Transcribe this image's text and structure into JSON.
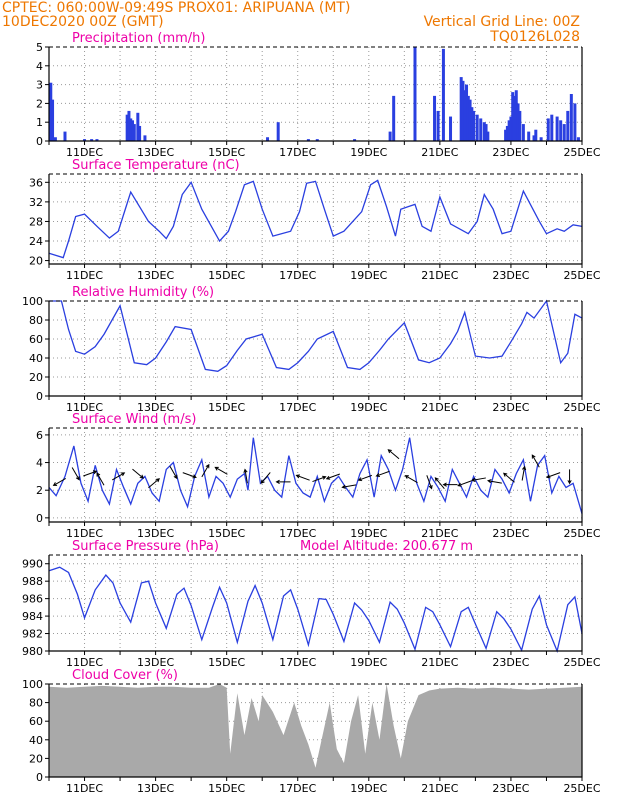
{
  "header": {
    "line1": "CPTEC:    060:00W-09:49S    PROX01: ARIPUANA (MT)",
    "line2_left": "10DEC2020 00Z (GMT)",
    "line2_right": "Vertical Grid Line: 00Z",
    "line3_right": "TQ0126L028"
  },
  "colors": {
    "header": "#ee7700",
    "title": "#ee00a8",
    "series": "#2a3fe0",
    "cloud": "#a9a9a9"
  },
  "chart_data": [
    {
      "type": "bar",
      "title": "Precipitation (mm/h)",
      "xticks": [
        "11DEC",
        "13DEC",
        "15DEC",
        "17DEC",
        "19DEC",
        "21DEC",
        "23DEC",
        "25DEC"
      ],
      "xrange_days": [
        10,
        25
      ],
      "ylim": [
        0,
        5
      ],
      "yticks": [
        0,
        1,
        2,
        3,
        4,
        5
      ],
      "grid": true,
      "x": [
        10.05,
        10.1,
        10.18,
        10.45,
        11.0,
        11.2,
        11.35,
        12.2,
        12.25,
        12.3,
        12.35,
        12.4,
        12.5,
        12.55,
        12.7,
        16.15,
        16.45,
        17.3,
        17.55,
        18.6,
        19.6,
        19.7,
        20.3,
        20.85,
        20.95,
        21.1,
        21.3,
        21.6,
        21.65,
        21.7,
        21.75,
        21.8,
        21.85,
        21.9,
        21.95,
        22.05,
        22.15,
        22.25,
        22.3,
        22.35,
        22.85,
        22.9,
        22.95,
        23.0,
        23.05,
        23.1,
        23.15,
        23.2,
        23.25,
        23.35,
        23.5,
        23.65,
        23.7,
        23.85,
        24.05,
        24.15,
        24.3,
        24.4,
        24.5,
        24.6,
        24.7,
        24.8,
        24.9
      ],
      "y": [
        3.1,
        2.2,
        0.2,
        0.5,
        0.1,
        0.1,
        0.1,
        1.4,
        1.6,
        1.2,
        1.1,
        0.9,
        1.5,
        0.8,
        0.3,
        0.2,
        1.0,
        0.1,
        0.1,
        0.1,
        0.5,
        2.4,
        5.0,
        2.4,
        1.6,
        4.9,
        1.3,
        3.4,
        3.2,
        2.7,
        3.0,
        2.4,
        2.2,
        1.8,
        1.6,
        1.4,
        1.2,
        1.0,
        0.9,
        0.5,
        0.6,
        0.8,
        1.1,
        1.3,
        2.6,
        2.4,
        2.7,
        2.0,
        1.6,
        0.9,
        0.5,
        0.3,
        0.6,
        0.2,
        1.2,
        1.4,
        1.3,
        1.1,
        0.9,
        1.6,
        2.5,
        2.0,
        0.2
      ]
    },
    {
      "type": "line",
      "title": "Surface Temperature (nC)",
      "xticks": [
        "11DEC",
        "13DEC",
        "15DEC",
        "17DEC",
        "19DEC",
        "21DEC",
        "23DEC",
        "25DEC"
      ],
      "xrange_days": [
        10,
        25
      ],
      "ylim": [
        19.3,
        37.7
      ],
      "yticks": [
        20,
        24,
        28,
        32,
        36
      ],
      "grid": true,
      "x": [
        10.0,
        10.4,
        10.55,
        10.75,
        11.0,
        11.35,
        11.7,
        11.95,
        12.3,
        12.8,
        13.1,
        13.3,
        13.5,
        13.75,
        14.0,
        14.3,
        14.8,
        15.05,
        15.25,
        15.5,
        15.75,
        16.0,
        16.3,
        16.8,
        17.05,
        17.25,
        17.5,
        17.75,
        18.0,
        18.3,
        18.8,
        19.05,
        19.25,
        19.5,
        19.75,
        19.9,
        20.1,
        20.3,
        20.5,
        20.75,
        21.0,
        21.3,
        21.8,
        22.05,
        22.25,
        22.5,
        22.75,
        23.0,
        23.35,
        23.8,
        24.0,
        24.3,
        24.5,
        24.75,
        25.0
      ],
      "y": [
        21.5,
        20.6,
        24.0,
        29.0,
        29.5,
        27.0,
        24.6,
        26.0,
        34.0,
        28.0,
        26.0,
        24.5,
        27.0,
        33.5,
        36.0,
        30.5,
        24.0,
        26.0,
        30.0,
        35.5,
        36.2,
        30.5,
        25.0,
        26.0,
        30.0,
        35.8,
        36.2,
        30.5,
        25.0,
        26.0,
        30.0,
        35.5,
        36.4,
        31.0,
        25.0,
        30.5,
        31.0,
        31.5,
        27.0,
        26.0,
        33.0,
        27.5,
        25.5,
        28.0,
        33.5,
        30.5,
        25.5,
        26.0,
        34.2,
        28.0,
        25.5,
        26.5,
        26.0,
        27.3,
        27.0
      ]
    },
    {
      "type": "line",
      "title": "Relative Humidity (%)",
      "xticks": [
        "11DEC",
        "13DEC",
        "15DEC",
        "17DEC",
        "19DEC",
        "21DEC",
        "23DEC",
        "25DEC"
      ],
      "xrange_days": [
        10,
        25
      ],
      "ylim": [
        0,
        100
      ],
      "yticks": [
        0,
        20,
        40,
        60,
        80,
        100
      ],
      "grid": true,
      "x": [
        10.0,
        10.35,
        10.55,
        10.75,
        11.0,
        11.3,
        11.55,
        12.0,
        12.4,
        12.75,
        13.0,
        13.3,
        13.55,
        14.0,
        14.4,
        14.75,
        15.0,
        15.3,
        15.55,
        16.0,
        16.4,
        16.75,
        17.0,
        17.3,
        17.55,
        18.0,
        18.4,
        18.75,
        19.0,
        19.3,
        19.55,
        20.0,
        20.4,
        20.7,
        21.0,
        21.3,
        21.5,
        21.7,
        22.0,
        22.4,
        22.75,
        23.0,
        23.3,
        23.45,
        23.65,
        24.0,
        24.4,
        24.6,
        24.8,
        25.0
      ],
      "y": [
        100,
        100,
        70,
        47,
        44,
        52,
        65,
        95,
        35,
        33,
        40,
        57,
        73,
        70,
        28,
        26,
        32,
        48,
        60,
        65,
        30,
        28,
        35,
        47,
        60,
        68,
        30,
        28,
        35,
        48,
        60,
        77,
        38,
        35,
        40,
        55,
        68,
        88,
        42,
        40,
        42,
        57,
        76,
        88,
        82,
        100,
        35,
        45,
        86,
        82
      ]
    },
    {
      "type": "line",
      "title": "Surface Wind (m/s)",
      "xticks": [
        "11DEC",
        "13DEC",
        "15DEC",
        "17DEC",
        "19DEC",
        "21DEC",
        "23DEC",
        "25DEC"
      ],
      "xrange_days": [
        10,
        25
      ],
      "ylim": [
        -0.3,
        6.5
      ],
      "yticks": [
        0,
        2,
        4,
        6
      ],
      "grid": true,
      "x": [
        10.0,
        10.2,
        10.45,
        10.7,
        10.9,
        11.1,
        11.3,
        11.5,
        11.7,
        11.9,
        12.1,
        12.3,
        12.5,
        12.7,
        12.9,
        13.1,
        13.3,
        13.5,
        13.7,
        13.9,
        14.1,
        14.3,
        14.5,
        14.7,
        14.9,
        15.1,
        15.3,
        15.5,
        15.6,
        15.75,
        15.95,
        16.15,
        16.35,
        16.55,
        16.75,
        16.95,
        17.15,
        17.35,
        17.55,
        17.75,
        17.95,
        18.15,
        18.35,
        18.55,
        18.75,
        18.95,
        19.15,
        19.35,
        19.55,
        19.75,
        19.95,
        20.15,
        20.35,
        20.55,
        20.75,
        20.95,
        21.15,
        21.35,
        21.55,
        21.75,
        21.95,
        22.15,
        22.35,
        22.55,
        22.75,
        22.95,
        23.15,
        23.35,
        23.55,
        23.75,
        23.95,
        24.15,
        24.35,
        24.55,
        24.75,
        25.0
      ],
      "y": [
        2.2,
        1.6,
        3.0,
        5.2,
        2.5,
        1.2,
        3.8,
        2.0,
        1.0,
        3.5,
        2.2,
        1.0,
        2.5,
        3.0,
        1.8,
        1.2,
        3.5,
        4.0,
        2.0,
        0.8,
        3.0,
        4.2,
        1.5,
        3.0,
        2.5,
        1.5,
        2.8,
        3.2,
        2.0,
        5.8,
        2.5,
        3.0,
        2.0,
        1.5,
        4.5,
        2.5,
        1.8,
        1.5,
        3.0,
        1.2,
        2.5,
        3.0,
        2.2,
        1.5,
        3.2,
        4.2,
        1.5,
        4.5,
        3.5,
        2.0,
        3.5,
        5.8,
        2.5,
        1.2,
        3.0,
        2.2,
        1.2,
        3.5,
        2.5,
        1.5,
        3.0,
        2.0,
        1.5,
        3.5,
        2.8,
        1.8,
        3.2,
        4.2,
        1.2,
        3.8,
        4.5,
        1.8,
        3.0,
        2.2,
        2.5,
        0.3
      ]
    },
    {
      "type": "line",
      "title": "Surface Pressure (hPa)",
      "annotation": "Model Altitude: 200.677 m",
      "xticks": [
        "11DEC",
        "13DEC",
        "15DEC",
        "17DEC",
        "19DEC",
        "21DEC",
        "23DEC",
        "25DEC"
      ],
      "xrange_days": [
        10,
        25
      ],
      "ylim": [
        980,
        991
      ],
      "yticks": [
        980,
        982,
        984,
        986,
        988,
        990
      ],
      "grid": true,
      "x": [
        10.0,
        10.3,
        10.55,
        10.8,
        11.0,
        11.3,
        11.6,
        11.8,
        12.0,
        12.3,
        12.6,
        12.8,
        13.0,
        13.3,
        13.6,
        13.8,
        14.0,
        14.3,
        14.6,
        14.8,
        15.0,
        15.3,
        15.6,
        15.8,
        16.0,
        16.3,
        16.6,
        16.8,
        17.0,
        17.3,
        17.6,
        17.8,
        18.0,
        18.3,
        18.6,
        18.8,
        19.0,
        19.3,
        19.6,
        19.8,
        20.0,
        20.3,
        20.6,
        20.8,
        21.0,
        21.3,
        21.6,
        21.8,
        22.0,
        22.3,
        22.6,
        22.8,
        23.0,
        23.3,
        23.6,
        23.8,
        24.0,
        24.3,
        24.6,
        24.8,
        25.0
      ],
      "y": [
        989.2,
        989.6,
        989.0,
        986.5,
        983.8,
        987.0,
        988.7,
        987.8,
        985.5,
        983.3,
        987.8,
        988.0,
        985.5,
        982.6,
        986.5,
        987.2,
        985.2,
        981.3,
        985.0,
        987.3,
        985.5,
        981.0,
        985.7,
        987.5,
        985.5,
        981.3,
        986.3,
        987.0,
        984.8,
        980.7,
        986.0,
        985.9,
        984.2,
        981.1,
        985.5,
        984.7,
        983.5,
        981.0,
        985.6,
        984.8,
        983.2,
        980.2,
        985.0,
        984.5,
        983.0,
        980.5,
        984.5,
        985.0,
        983.1,
        980.3,
        984.5,
        983.7,
        982.5,
        980.1,
        984.8,
        986.3,
        983.0,
        980.0,
        985.3,
        986.2,
        982.0
      ]
    },
    {
      "type": "area",
      "title": "Cloud Cover (%)",
      "xticks": [
        "11DEC",
        "13DEC",
        "15DEC",
        "17DEC",
        "19DEC",
        "21DEC",
        "23DEC",
        "25DEC"
      ],
      "xrange_days": [
        10,
        25
      ],
      "ylim": [
        0,
        100
      ],
      "yticks": [
        0,
        20,
        40,
        60,
        80,
        100
      ],
      "grid": true,
      "x": [
        10.0,
        10.5,
        11.0,
        11.5,
        12.0,
        12.5,
        13.0,
        13.5,
        14.0,
        14.5,
        14.8,
        15.0,
        15.1,
        15.3,
        15.5,
        15.7,
        15.9,
        16.0,
        16.3,
        16.6,
        16.9,
        17.1,
        17.3,
        17.5,
        17.7,
        17.9,
        18.1,
        18.3,
        18.5,
        18.7,
        18.9,
        19.1,
        19.3,
        19.5,
        19.7,
        19.9,
        20.1,
        20.4,
        20.7,
        21.0,
        21.5,
        22.0,
        22.5,
        23.0,
        23.5,
        24.0,
        24.5,
        25.0
      ],
      "y": [
        97,
        96,
        97,
        98,
        97,
        96,
        97,
        97,
        96,
        96,
        100,
        96,
        25,
        90,
        45,
        85,
        60,
        88,
        70,
        45,
        80,
        55,
        35,
        10,
        45,
        80,
        30,
        15,
        60,
        88,
        25,
        80,
        40,
        100,
        55,
        20,
        60,
        88,
        93,
        95,
        96,
        95,
        96,
        95,
        94,
        95,
        96,
        97
      ]
    }
  ],
  "wind_arrows": [
    {
      "day": 10.3,
      "speed": 2.6,
      "angle": 210
    },
    {
      "day": 10.75,
      "speed": 3.2,
      "angle": 300
    },
    {
      "day": 11.15,
      "speed": 3.2,
      "angle": 20
    },
    {
      "day": 11.45,
      "speed": 2.8,
      "angle": 120
    },
    {
      "day": 11.95,
      "speed": 3.0,
      "angle": 30
    },
    {
      "day": 12.5,
      "speed": 3.2,
      "angle": 320
    },
    {
      "day": 12.95,
      "speed": 2.5,
      "angle": 40
    },
    {
      "day": 13.5,
      "speed": 3.3,
      "angle": 300
    },
    {
      "day": 13.95,
      "speed": 3.1,
      "angle": 340
    },
    {
      "day": 14.4,
      "speed": 3.4,
      "angle": 60
    },
    {
      "day": 14.85,
      "speed": 3.4,
      "angle": 150
    },
    {
      "day": 15.55,
      "speed": 3.0,
      "angle": 100
    },
    {
      "day": 16.1,
      "speed": 2.9,
      "angle": 230
    },
    {
      "day": 16.6,
      "speed": 2.6,
      "angle": 180
    },
    {
      "day": 17.15,
      "speed": 2.9,
      "angle": 160
    },
    {
      "day": 17.6,
      "speed": 2.8,
      "angle": 20
    },
    {
      "day": 18.0,
      "speed": 3.0,
      "angle": 200
    },
    {
      "day": 18.45,
      "speed": 2.3,
      "angle": 190
    },
    {
      "day": 18.9,
      "speed": 2.9,
      "angle": 200
    },
    {
      "day": 19.4,
      "speed": 3.2,
      "angle": 200
    },
    {
      "day": 19.7,
      "speed": 4.6,
      "angle": 140
    },
    {
      "day": 20.2,
      "speed": 2.8,
      "angle": 150
    },
    {
      "day": 20.7,
      "speed": 2.6,
      "angle": 290
    },
    {
      "day": 21.0,
      "speed": 2.5,
      "angle": 130
    },
    {
      "day": 21.3,
      "speed": 2.4,
      "angle": 180
    },
    {
      "day": 21.7,
      "speed": 2.5,
      "angle": 200
    },
    {
      "day": 22.1,
      "speed": 2.8,
      "angle": 190
    },
    {
      "day": 22.55,
      "speed": 2.6,
      "angle": 170
    },
    {
      "day": 22.95,
      "speed": 2.9,
      "angle": 140
    },
    {
      "day": 23.35,
      "speed": 3.2,
      "angle": 80
    },
    {
      "day": 23.7,
      "speed": 4.1,
      "angle": 120
    },
    {
      "day": 24.2,
      "speed": 3.1,
      "angle": 200
    },
    {
      "day": 24.65,
      "speed": 3.0,
      "angle": 270
    }
  ]
}
